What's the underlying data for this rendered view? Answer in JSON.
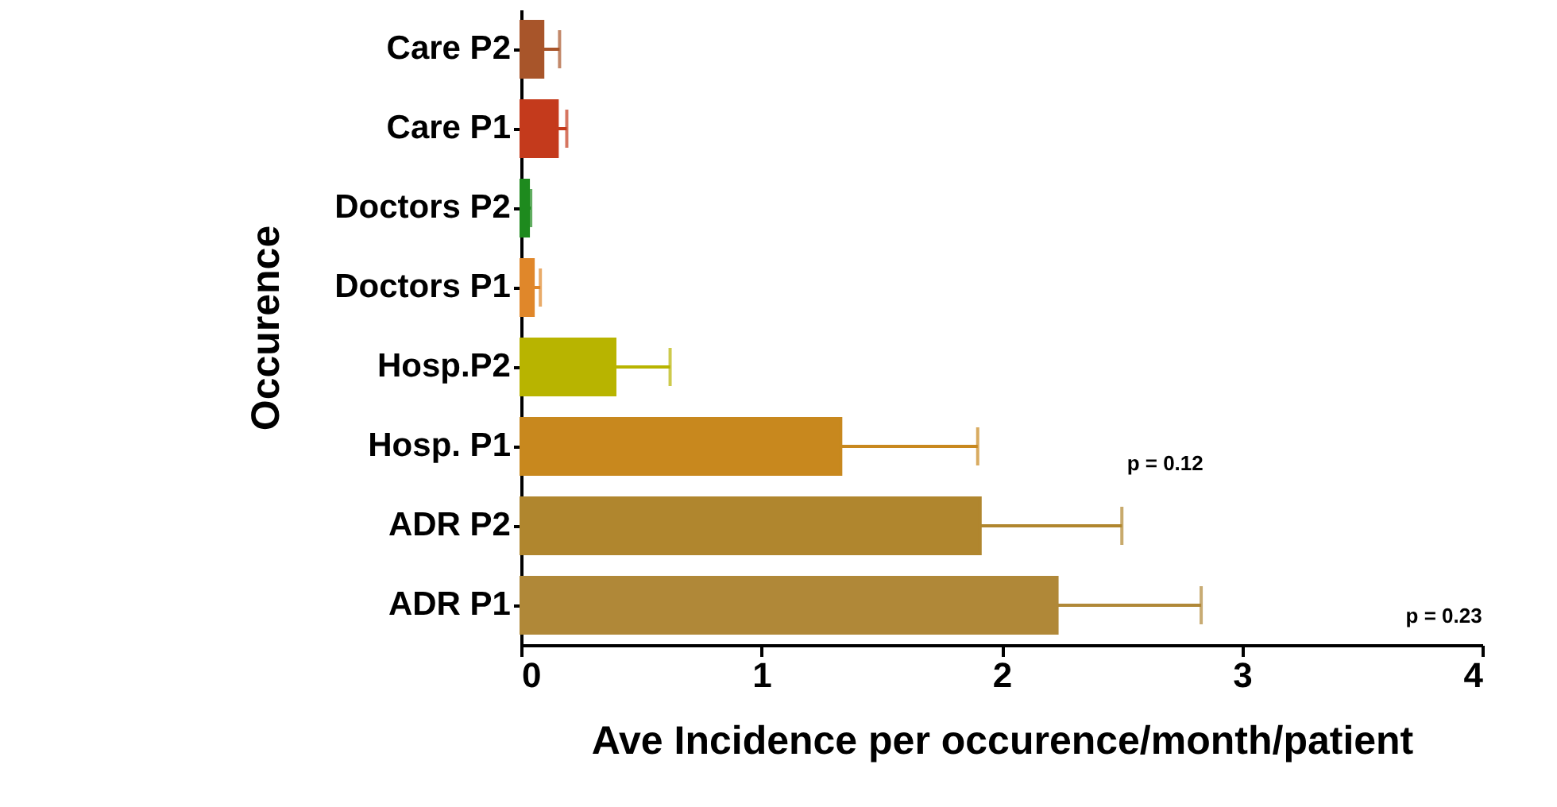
{
  "chart_data": {
    "type": "bar",
    "orientation": "horizontal",
    "categories": [
      "Care P2",
      "Care P1",
      "Doctors P2",
      "Doctors P1",
      "Hosp.P2",
      "Hosp. P1",
      "ADR P2",
      "ADR P1"
    ],
    "values": [
      0.09,
      0.15,
      0.03,
      0.05,
      0.39,
      1.33,
      1.91,
      2.23
    ],
    "errors": [
      0.07,
      0.04,
      0.01,
      0.03,
      0.23,
      0.57,
      0.59,
      0.6
    ],
    "colors": [
      "#a8552a",
      "#c43a1c",
      "#1e8a1e",
      "#e0872a",
      "#b8b400",
      "#c8881e",
      "#b0862e",
      "#b08838"
    ],
    "xlim": [
      0,
      4
    ],
    "xticks": [
      0,
      1,
      2,
      3,
      4
    ],
    "xlabel": "Ave Incidence per occurence/month/patient",
    "ylabel": "Occurence",
    "annotations": [
      "p = 0.12",
      "p = 0.23"
    ],
    "grid": false
  }
}
